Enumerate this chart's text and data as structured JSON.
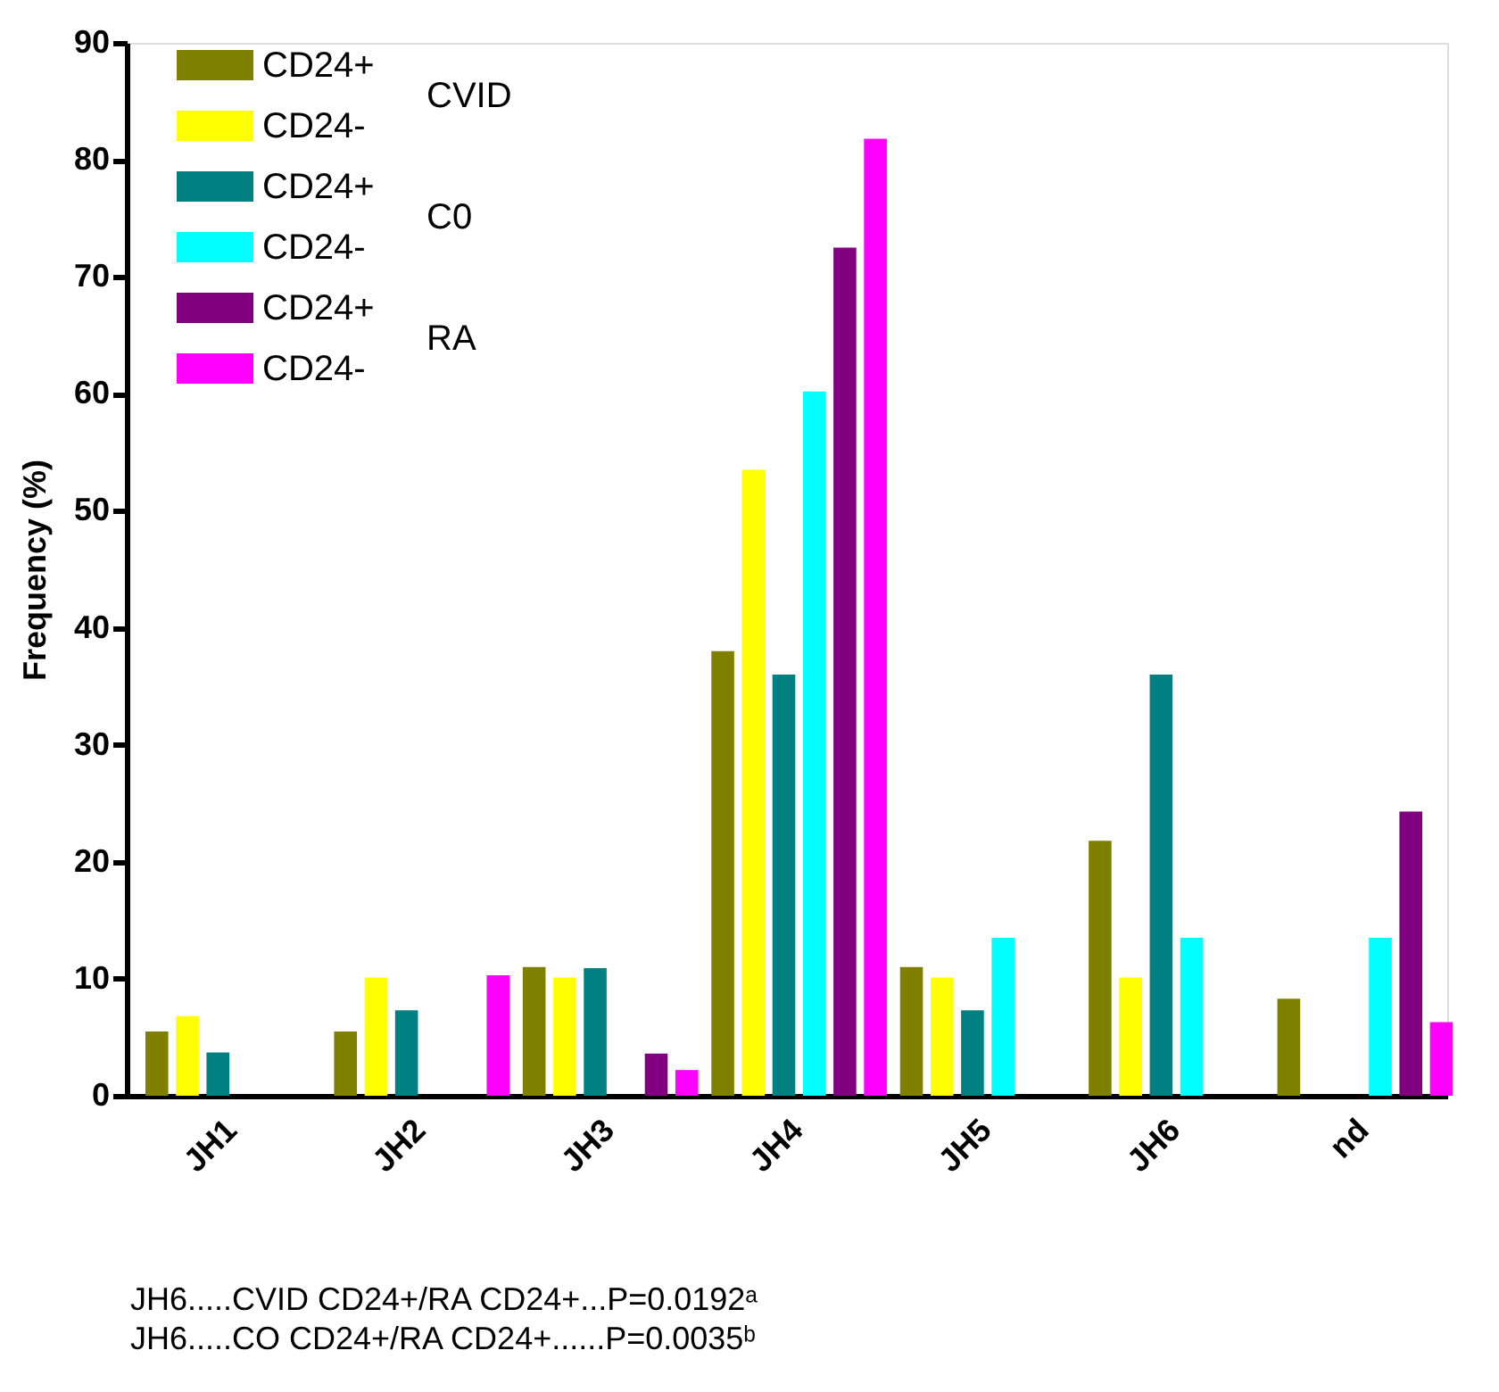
{
  "chart_data": {
    "type": "bar",
    "ylabel": "Frequency (%)",
    "categories": [
      "JH1",
      "JH2",
      "JH3",
      "JH4",
      "JH5",
      "JH6",
      "nd"
    ],
    "series": [
      {
        "name": "CD24+",
        "color": "#808000",
        "values": [
          5.5,
          5.5,
          11,
          38,
          11,
          21.8,
          8.3
        ]
      },
      {
        "name": "CD24-",
        "color": "#ffff00",
        "values": [
          6.8,
          10.1,
          10.1,
          53.5,
          10.1,
          10.1,
          0
        ]
      },
      {
        "name": "CD24+",
        "color": "#008080",
        "values": [
          3.7,
          7.3,
          10.9,
          36,
          7.3,
          36,
          0
        ]
      },
      {
        "name": "CD24-",
        "color": "#00ffff",
        "values": [
          0,
          0,
          0,
          60.2,
          13.5,
          13.5,
          13.5
        ]
      },
      {
        "name": "CD24+",
        "color": "#800080",
        "values": [
          0,
          0,
          3.6,
          72.5,
          0,
          0,
          24.3
        ]
      },
      {
        "name": "CD24-",
        "color": "#ff00ff",
        "values": [
          0,
          10.3,
          2.2,
          81.8,
          0,
          0,
          6.3
        ]
      }
    ],
    "ylim": [
      0,
      90
    ],
    "yticks": [
      0,
      10,
      20,
      30,
      40,
      50,
      60,
      70,
      80,
      90
    ],
    "grid": false,
    "legend": "top left",
    "annotations": [
      "CVID",
      "C0",
      "RA",
      "JH6.....CVID CD24+/RA CD24+...P=0.0192ᵃ",
      "JH6.....CO CD24+/RA CD24+......P=0.0035ᵇ"
    ]
  }
}
